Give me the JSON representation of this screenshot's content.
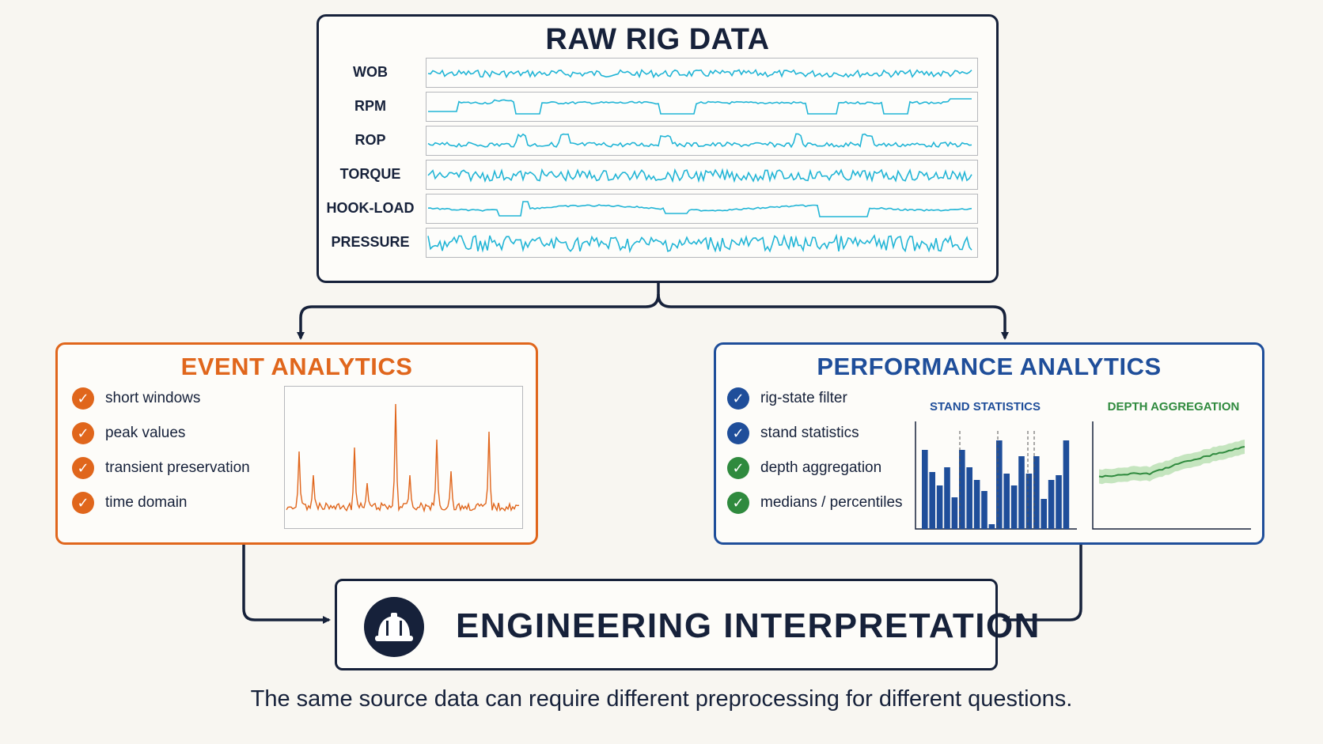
{
  "raw": {
    "title": "RAW RIG DATA",
    "signals": [
      {
        "label": "WOB",
        "shape": "noise-small"
      },
      {
        "label": "RPM",
        "shape": "step-plateaus"
      },
      {
        "label": "ROP",
        "shape": "noise-spikes"
      },
      {
        "label": "TORQUE",
        "shape": "noise-medium"
      },
      {
        "label": "HOOK-LOAD",
        "shape": "slow-wave"
      },
      {
        "label": "PRESSURE",
        "shape": "noise-large"
      }
    ],
    "signal_color": "#22b5d6"
  },
  "event": {
    "title": "EVENT ANALYTICS",
    "items": [
      "short windows",
      "peak values",
      "transient preservation",
      "time domain"
    ],
    "accent": "#e0661c"
  },
  "performance": {
    "title": "PERFORMANCE ANALYTICS",
    "items": [
      {
        "label": "rig-state filter",
        "color": "blue"
      },
      {
        "label": "stand statistics",
        "color": "blue"
      },
      {
        "label": "depth aggregation",
        "color": "green"
      },
      {
        "label": "medians / percentiles",
        "color": "green"
      }
    ],
    "stand_statistics_title": "STAND STATISTICS",
    "depth_aggregation_title": "DEPTH AGGREGATION",
    "accent": "#1f4e9a",
    "secondary": "#2f8a3e"
  },
  "engineering": {
    "title": "ENGINEERING INTERPRETATION",
    "icon": "hard-hat-icon"
  },
  "caption": "The same source data can require different preprocessing for different questions."
}
